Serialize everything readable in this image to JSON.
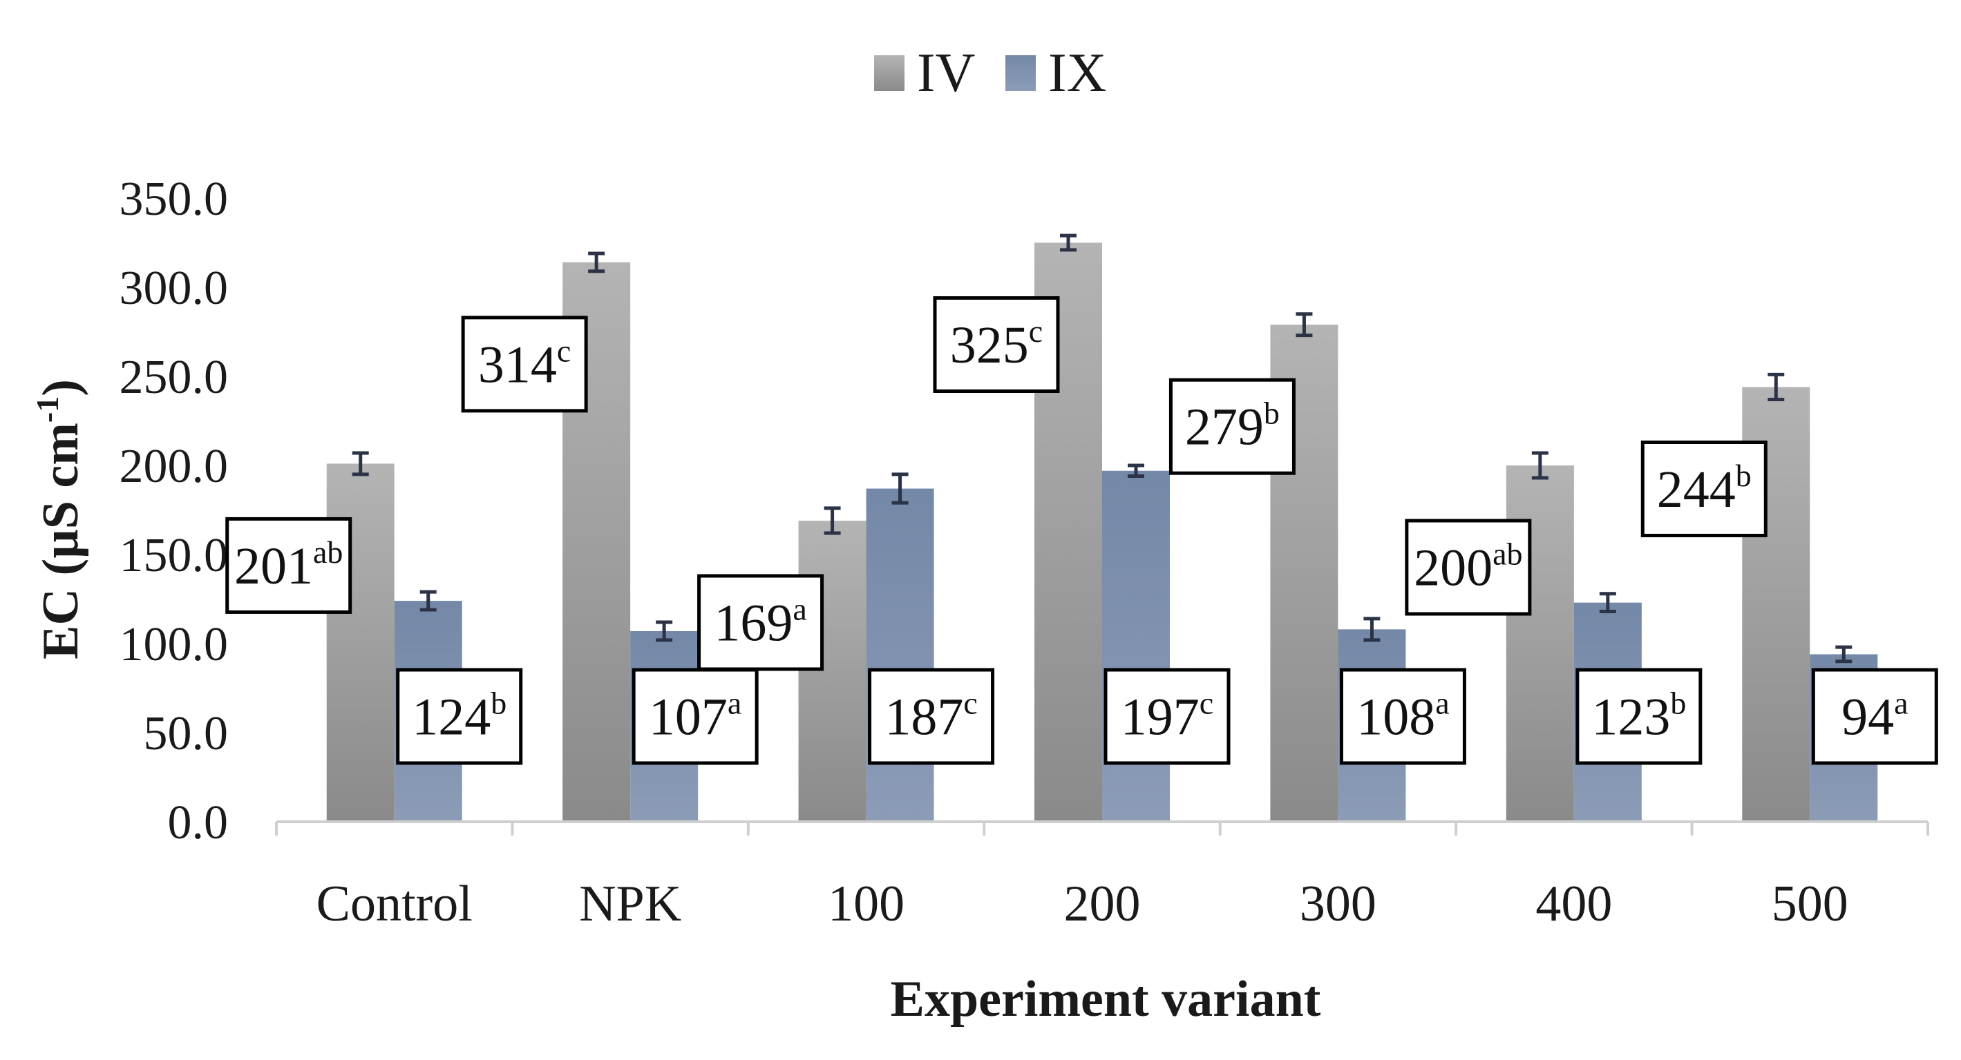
{
  "chart_data": {
    "type": "bar",
    "title": "",
    "xlabel": "Experiment variant",
    "ylabel": "EC (µS cm",
    "ylabel_sup": "-1",
    "ylabel_close": ")",
    "ylim": [
      0,
      350
    ],
    "yticks": [
      "0.0",
      "50.0",
      "100.0",
      "150.0",
      "200.0",
      "250.0",
      "300.0",
      "350.0"
    ],
    "grid": false,
    "legend_position": "top-center",
    "categories": [
      "Control",
      "NPK",
      "100",
      "200",
      "300",
      "400",
      "500"
    ],
    "series": [
      {
        "name": "IV",
        "color": "#9a9a9a",
        "values": [
          201,
          314,
          169,
          325,
          279,
          200,
          244
        ],
        "errors": [
          6,
          5,
          7,
          4,
          6,
          7,
          7
        ],
        "labels": [
          "201",
          "314",
          "169",
          "325",
          "279",
          "200",
          "244"
        ],
        "letters": [
          "ab",
          "c",
          "a",
          "c",
          "b",
          "ab",
          "b"
        ]
      },
      {
        "name": "IX",
        "color": "#7d8fab",
        "values": [
          124,
          107,
          187,
          197,
          108,
          123,
          94
        ],
        "errors": [
          5,
          5,
          8,
          3,
          6,
          5,
          4
        ],
        "labels": [
          "124",
          "107",
          "187",
          "197",
          "108",
          "123",
          "94"
        ],
        "letters": [
          "b",
          "a",
          "c",
          "c",
          "a",
          "b",
          "a"
        ]
      }
    ]
  }
}
